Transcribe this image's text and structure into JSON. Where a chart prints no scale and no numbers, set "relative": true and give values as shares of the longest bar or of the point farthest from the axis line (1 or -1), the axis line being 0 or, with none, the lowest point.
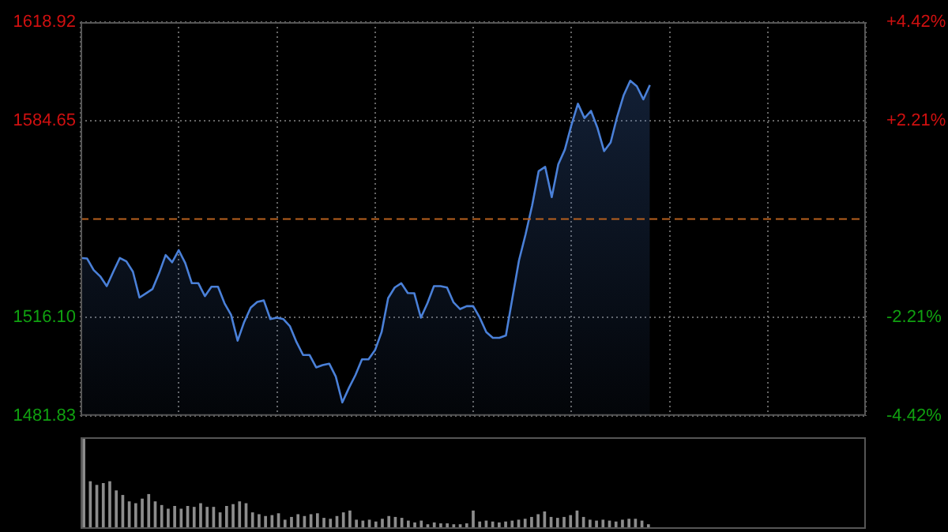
{
  "chart_data": [
    {
      "type": "area",
      "categories": [
        null,
        null,
        null,
        null,
        null,
        null,
        null,
        null,
        null,
        null,
        null,
        null,
        null,
        null,
        null,
        null,
        null,
        null,
        null,
        null,
        null,
        null,
        null,
        null,
        null,
        null,
        null,
        null,
        null,
        null,
        null,
        null,
        null,
        null,
        null,
        null,
        null,
        null,
        null,
        null,
        null,
        null,
        null,
        null,
        null,
        null,
        null,
        null,
        null,
        null,
        null,
        null,
        null,
        null,
        null,
        null,
        null,
        null,
        null,
        null,
        null,
        null,
        null,
        null,
        null,
        null,
        null,
        null,
        null,
        null,
        null,
        null,
        null,
        null,
        null,
        null,
        null,
        null,
        null,
        null,
        null,
        null,
        null,
        null,
        null,
        null,
        null,
        null,
        null,
        null,
        null,
        null,
        null,
        null,
        null,
        null,
        null,
        null,
        null,
        null,
        null,
        null,
        null,
        null,
        null,
        null,
        null,
        null,
        null,
        null,
        null,
        null,
        null,
        null,
        null,
        null,
        null,
        null,
        null,
        null,
        null
      ],
      "series": [
        {
          "color": "#4a80d8",
          "values": [
            1536.8,
            1536.6,
            1532.6,
            1530.4,
            1527,
            1532,
            1536.8,
            1535.6,
            1532,
            1523,
            1524.5,
            1526,
            1531.5,
            1537.8,
            1535.3,
            1539.5,
            1535,
            1528,
            1528,
            1523.5,
            1526.8,
            1526.8,
            1521,
            1517,
            1508,
            1514.5,
            1519.5,
            1521.5,
            1522,
            1515.5,
            1516,
            1515.5,
            1513,
            1507.5,
            1503,
            1503,
            1498.7,
            1499.5,
            1500,
            1495.5,
            1486.5,
            1491.5,
            1496,
            1501.5,
            1501.5,
            1504.7,
            1511,
            1522.8,
            1526.5,
            1528,
            1524.6,
            1524.5,
            1516,
            1521,
            1527,
            1527,
            1526.5,
            1521.3,
            1519,
            1520,
            1520,
            1516,
            1511,
            1509,
            1509,
            1509.8,
            1523,
            1536,
            1545,
            1555,
            1567,
            1568.5,
            1558,
            1569.4,
            1574.5,
            1583,
            1590.5,
            1585.5,
            1588,
            1582,
            1574,
            1577,
            1586,
            1593.5,
            1598.5,
            1596.6,
            1592,
            1597,
            null,
            null,
            null,
            null,
            null,
            null,
            null,
            null,
            null,
            null,
            null,
            null,
            null,
            null,
            null,
            null,
            null,
            null,
            null,
            null,
            null,
            null,
            null,
            null,
            null,
            null,
            null,
            null,
            null,
            null,
            null,
            null,
            null
          ]
        }
      ],
      "ylim": [
        1481.83,
        1618.92
      ],
      "yticks": [
        {
          "value": 1481.83,
          "label": "1481.83"
        },
        {
          "value": 1516.1,
          "label": "1516.10"
        },
        {
          "value": 1584.65,
          "label": "1584.65"
        },
        {
          "value": 1618.92,
          "label": "1618.92"
        }
      ],
      "y2lim": [
        -4.42,
        4.42
      ],
      "y2ticks": [
        {
          "value": -4.42,
          "label": "-4.42%"
        },
        {
          "value": -2.21,
          "label": "-2.21%"
        },
        {
          "value": 2.21,
          "label": "+2.21%"
        },
        {
          "value": 4.42,
          "label": "+4.42%"
        }
      ],
      "ref_lines": [
        {
          "axis": "y",
          "value": 1550.37,
          "color": "#b8601e",
          "line_style": "dashed"
        }
      ],
      "grid": true,
      "marker": "none",
      "tick_labels": "y"
    },
    {
      "type": "bar",
      "relative": true,
      "categories": [
        null,
        null,
        null,
        null,
        null,
        null,
        null,
        null,
        null,
        null,
        null,
        null,
        null,
        null,
        null,
        null,
        null,
        null,
        null,
        null,
        null,
        null,
        null,
        null,
        null,
        null,
        null,
        null,
        null,
        null,
        null,
        null,
        null,
        null,
        null,
        null,
        null,
        null,
        null,
        null,
        null,
        null,
        null,
        null,
        null,
        null,
        null,
        null,
        null,
        null,
        null,
        null,
        null,
        null,
        null,
        null,
        null,
        null,
        null,
        null,
        null,
        null,
        null,
        null,
        null,
        null,
        null,
        null,
        null,
        null,
        null,
        null,
        null,
        null,
        null,
        null,
        null,
        null,
        null,
        null,
        null,
        null,
        null,
        null,
        null,
        null,
        null,
        null,
        null,
        null,
        null,
        null,
        null,
        null,
        null,
        null,
        null,
        null,
        null,
        null,
        null,
        null,
        null,
        null,
        null,
        null,
        null,
        null,
        null,
        null,
        null,
        null,
        null,
        null,
        null,
        null,
        null,
        null,
        null,
        null,
        null
      ],
      "series": [
        {
          "color": "#8c8c8c",
          "values": [
            1,
            0.52,
            0.48,
            0.5,
            0.52,
            0.42,
            0.37,
            0.3,
            0.28,
            0.33,
            0.38,
            0.3,
            0.26,
            0.22,
            0.25,
            0.22,
            0.25,
            0.24,
            0.28,
            0.24,
            0.24,
            0.18,
            0.25,
            0.27,
            0.3,
            0.28,
            0.18,
            0.16,
            0.14,
            0.15,
            0.17,
            0.1,
            0.13,
            0.16,
            0.14,
            0.16,
            0.17,
            0.12,
            0.11,
            0.14,
            0.18,
            0.2,
            0.1,
            0.09,
            0.1,
            0.08,
            0.11,
            0.14,
            0.13,
            0.12,
            0.09,
            0.07,
            0.09,
            0.05,
            0.07,
            0.06,
            0.06,
            0.05,
            0.05,
            0.06,
            0.2,
            0.08,
            0.09,
            0.08,
            0.07,
            0.08,
            0.09,
            0.1,
            0.11,
            0.13,
            0.16,
            0.19,
            0.13,
            0.12,
            0.13,
            0.15,
            0.2,
            0.13,
            0.1,
            0.09,
            0.1,
            0.09,
            0.08,
            0.1,
            0.11,
            0.11,
            0.09,
            0.05,
            null,
            null,
            null,
            null,
            null,
            null,
            null,
            null,
            null,
            null,
            null,
            null,
            null,
            null,
            null,
            null,
            null,
            null,
            null,
            null,
            null,
            null,
            null,
            null,
            null,
            null,
            null,
            null,
            null,
            null,
            null,
            null,
            null
          ]
        }
      ],
      "grid": false,
      "tick_labels": false
    }
  ]
}
